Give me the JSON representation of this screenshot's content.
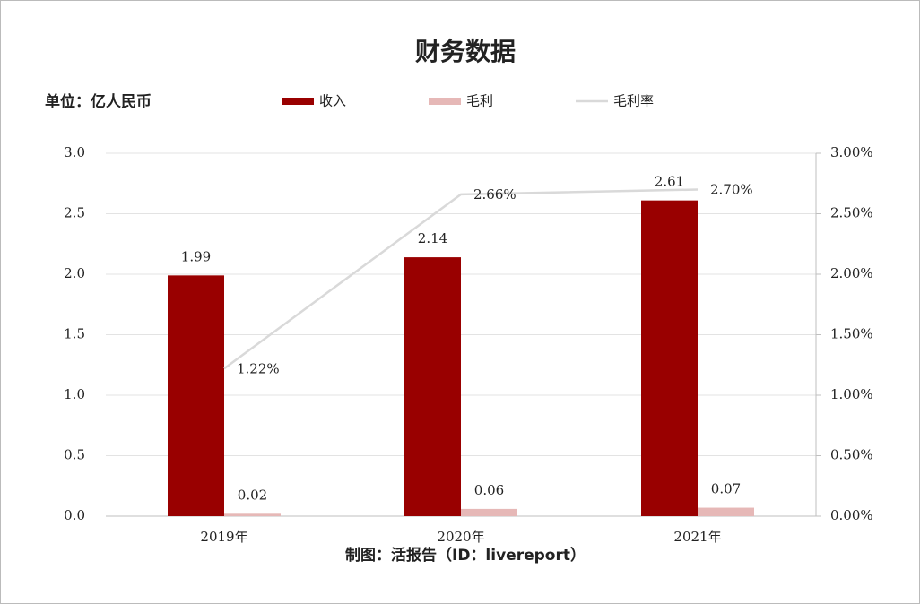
{
  "chart_data": {
    "type": "bar",
    "title": "财务数据",
    "subtitle": "单位：亿人民币",
    "source": "制图：活报告（ID：livereport）",
    "categories": [
      "2019年",
      "2020年",
      "2021年"
    ],
    "series": [
      {
        "name": "收入",
        "type": "bar",
        "color": "#990000",
        "values": [
          1.99,
          2.14,
          2.61
        ]
      },
      {
        "name": "毛利",
        "type": "bar",
        "color": "#e6b8b7",
        "values": [
          0.02,
          0.06,
          0.07
        ]
      },
      {
        "name": "毛利率",
        "type": "line",
        "axis": "y2",
        "color": "#d9d9d9",
        "values": [
          1.22,
          2.66,
          2.7
        ],
        "value_labels": [
          "1.22%",
          "2.66%",
          "2.70%"
        ]
      }
    ],
    "ylim": [
      0,
      3
    ],
    "yticks": [
      {
        "value": 0,
        "label": "0.0"
      },
      {
        "value": 0.5,
        "label": "0.5"
      },
      {
        "value": 1,
        "label": "1.0"
      },
      {
        "value": 1.5,
        "label": "1.5"
      },
      {
        "value": 2,
        "label": "2.0"
      },
      {
        "value": 2.5,
        "label": "2.5"
      },
      {
        "value": 3,
        "label": "3.0"
      }
    ],
    "y2lim": [
      0,
      3
    ],
    "y2ticks": [
      {
        "value": 0,
        "label": "0.00%"
      },
      {
        "value": 0.5,
        "label": "0.50%"
      },
      {
        "value": 1,
        "label": "1.00%"
      },
      {
        "value": 1.5,
        "label": "1.50%"
      },
      {
        "value": 2,
        "label": "2.00%"
      },
      {
        "value": 2.5,
        "label": "2.50%"
      },
      {
        "value": 3,
        "label": "3.00%"
      }
    ],
    "grid": true
  }
}
